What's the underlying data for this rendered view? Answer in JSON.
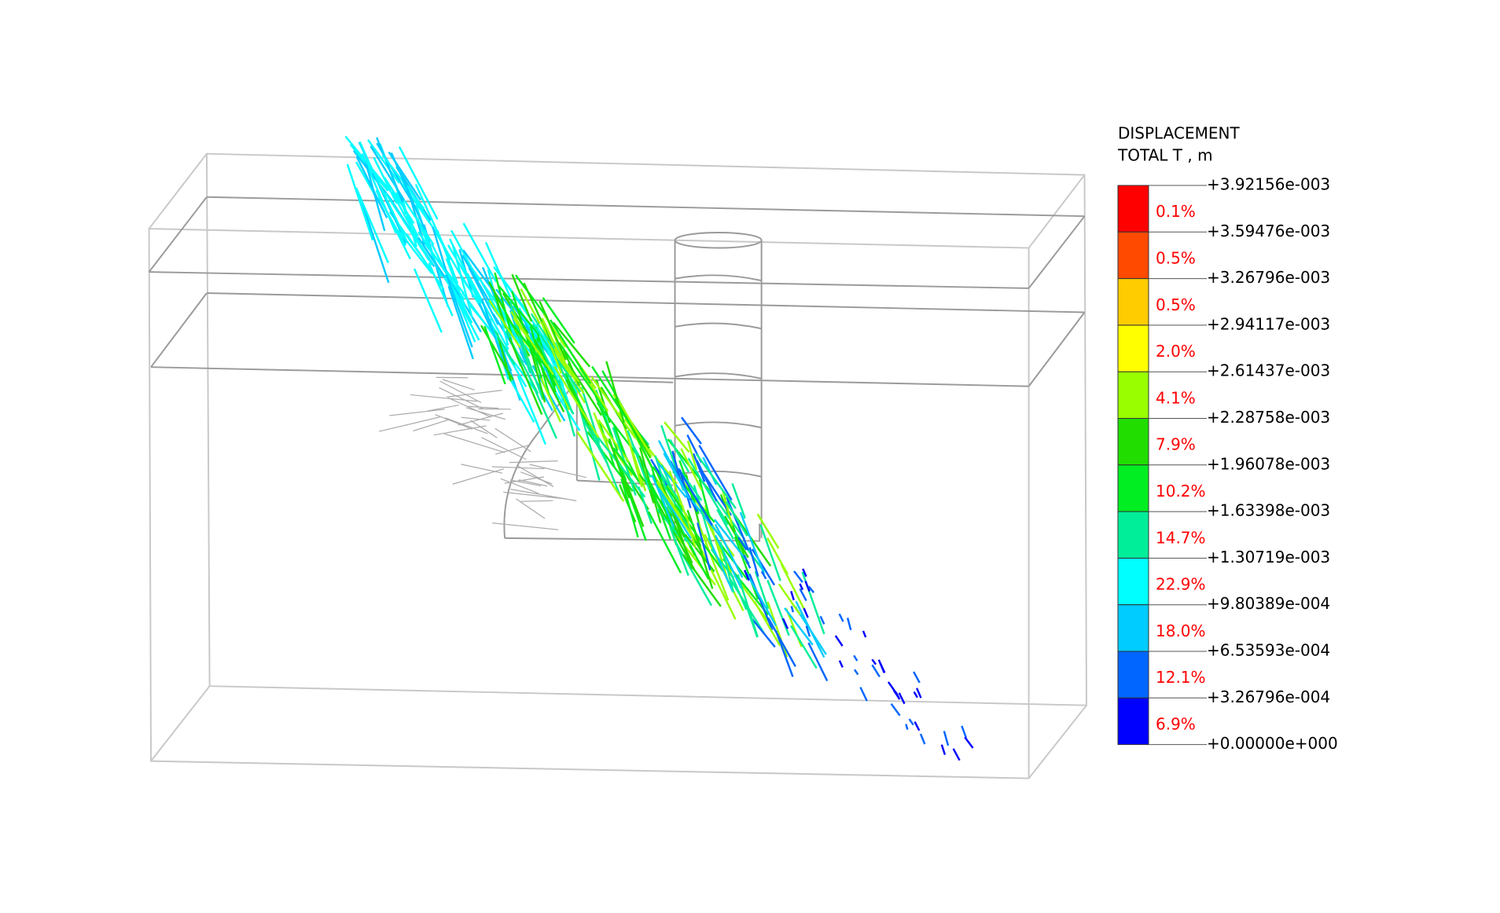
{
  "legend": {
    "title": [
      "DISPLACEMENT",
      "TOTAL T , m"
    ],
    "levels": [
      "+3.92156e-003",
      "+3.59476e-003",
      "+3.26796e-003",
      "+2.94117e-003",
      "+2.61437e-003",
      "+2.28758e-003",
      "+1.96078e-003",
      "+1.63398e-003",
      "+1.30719e-003",
      "+9.80389e-004",
      "+6.53593e-004",
      "+3.26796e-004",
      "+0.00000e+000"
    ],
    "bands": [
      {
        "color": "#ff0000",
        "percent": "0.1%"
      },
      {
        "color": "#ff4a00",
        "percent": "0.5%"
      },
      {
        "color": "#ffcc00",
        "percent": "0.5%"
      },
      {
        "color": "#ffff00",
        "percent": "2.0%"
      },
      {
        "color": "#99ff00",
        "percent": "4.1%"
      },
      {
        "color": "#22dd00",
        "percent": "7.9%"
      },
      {
        "color": "#00ee22",
        "percent": "10.2%"
      },
      {
        "color": "#00ee99",
        "percent": "14.7%"
      },
      {
        "color": "#00ffff",
        "percent": "22.9%"
      },
      {
        "color": "#00ccff",
        "percent": "18.0%"
      },
      {
        "color": "#0066ff",
        "percent": "12.1%"
      },
      {
        "color": "#0000ff",
        "percent": "6.9%"
      }
    ]
  }
}
